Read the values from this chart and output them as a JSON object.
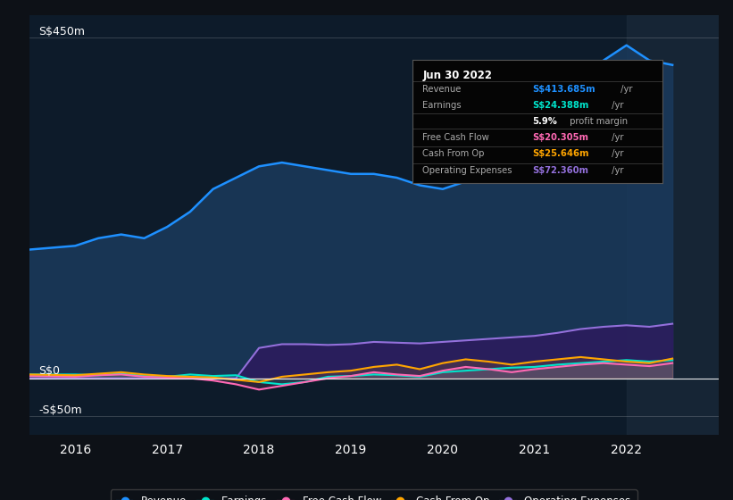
{
  "bg_color": "#0d1117",
  "plot_bg_color": "#0d1b2a",
  "title_box": {
    "date": "Jun 30 2022",
    "rows": [
      {
        "label": "Revenue",
        "value": "S$413.685m",
        "unit": "/yr",
        "color": "#1e90ff"
      },
      {
        "label": "Earnings",
        "value": "S$24.388m",
        "unit": "/yr",
        "color": "#00e5cc"
      },
      {
        "label": "",
        "value": "5.9%",
        "unit": " profit margin",
        "color": "#ffffff"
      },
      {
        "label": "Free Cash Flow",
        "value": "S$20.305m",
        "unit": "/yr",
        "color": "#ff69b4"
      },
      {
        "label": "Cash From Op",
        "value": "S$25.646m",
        "unit": "/yr",
        "color": "#ffa500"
      },
      {
        "label": "Operating Expenses",
        "value": "S$72.360m",
        "unit": "/yr",
        "color": "#9370db"
      }
    ]
  },
  "ylabel_top": "S$450m",
  "ylabel_zero": "S$0",
  "ylabel_neg": "-S$50m",
  "x_ticks": [
    2016,
    2017,
    2018,
    2019,
    2020,
    2021,
    2022
  ],
  "x_range": [
    2015.5,
    2023.0
  ],
  "y_range": [
    -75,
    480
  ],
  "highlight_x_start": 2022.0,
  "series": {
    "revenue": {
      "color": "#1e90ff",
      "fill_color": "#1a3a5c",
      "label": "Revenue",
      "x": [
        2015.5,
        2016.0,
        2016.25,
        2016.5,
        2016.75,
        2017.0,
        2017.25,
        2017.5,
        2017.75,
        2018.0,
        2018.25,
        2018.5,
        2018.75,
        2019.0,
        2019.25,
        2019.5,
        2019.75,
        2020.0,
        2020.25,
        2020.5,
        2020.75,
        2021.0,
        2021.25,
        2021.5,
        2021.75,
        2022.0,
        2022.25,
        2022.5
      ],
      "y": [
        170,
        175,
        185,
        190,
        185,
        200,
        220,
        250,
        265,
        280,
        285,
        280,
        275,
        270,
        270,
        265,
        255,
        250,
        260,
        265,
        275,
        295,
        330,
        380,
        420,
        440,
        420,
        414
      ]
    },
    "earnings": {
      "color": "#00e5cc",
      "label": "Earnings",
      "x": [
        2015.5,
        2016.0,
        2016.25,
        2016.5,
        2016.75,
        2017.0,
        2017.25,
        2017.5,
        2017.75,
        2018.0,
        2018.25,
        2018.5,
        2018.75,
        2019.0,
        2019.25,
        2019.5,
        2019.75,
        2020.0,
        2020.25,
        2020.5,
        2020.75,
        2021.0,
        2021.25,
        2021.5,
        2021.75,
        2022.0,
        2022.25,
        2022.5
      ],
      "y": [
        5,
        5,
        4,
        6,
        3,
        2,
        5,
        3,
        4,
        -5,
        -8,
        -5,
        2,
        3,
        5,
        4,
        2,
        8,
        10,
        12,
        14,
        15,
        18,
        20,
        22,
        24,
        22,
        24
      ]
    },
    "free_cash_flow": {
      "color": "#ff69b4",
      "label": "Free Cash Flow",
      "x": [
        2015.5,
        2016.0,
        2016.25,
        2016.5,
        2016.75,
        2017.0,
        2017.25,
        2017.5,
        2017.75,
        2018.0,
        2018.25,
        2018.5,
        2018.75,
        2019.0,
        2019.25,
        2019.5,
        2019.75,
        2020.0,
        2020.25,
        2020.5,
        2020.75,
        2021.0,
        2021.25,
        2021.5,
        2021.75,
        2022.0,
        2022.25,
        2022.5
      ],
      "y": [
        3,
        2,
        4,
        5,
        2,
        1,
        0,
        -3,
        -8,
        -15,
        -10,
        -5,
        0,
        3,
        8,
        5,
        3,
        10,
        15,
        12,
        8,
        12,
        15,
        18,
        20,
        18,
        16,
        20
      ]
    },
    "cash_from_op": {
      "color": "#ffa500",
      "label": "Cash From Op",
      "x": [
        2015.5,
        2016.0,
        2016.25,
        2016.5,
        2016.75,
        2017.0,
        2017.25,
        2017.5,
        2017.75,
        2018.0,
        2018.25,
        2018.5,
        2018.75,
        2019.0,
        2019.25,
        2019.5,
        2019.75,
        2020.0,
        2020.25,
        2020.5,
        2020.75,
        2021.0,
        2021.25,
        2021.5,
        2021.75,
        2022.0,
        2022.25,
        2022.5
      ],
      "y": [
        5,
        4,
        6,
        8,
        5,
        3,
        2,
        1,
        -2,
        -5,
        2,
        5,
        8,
        10,
        15,
        18,
        12,
        20,
        25,
        22,
        18,
        22,
        25,
        28,
        25,
        22,
        20,
        26
      ]
    },
    "operating_expenses": {
      "color": "#9370db",
      "fill_color": "#2d1b5e",
      "label": "Operating Expenses",
      "x": [
        2015.5,
        2016.0,
        2016.25,
        2016.5,
        2016.75,
        2017.0,
        2017.25,
        2017.5,
        2017.75,
        2018.0,
        2018.25,
        2018.5,
        2018.75,
        2019.0,
        2019.25,
        2019.5,
        2019.75,
        2020.0,
        2020.25,
        2020.5,
        2020.75,
        2021.0,
        2021.25,
        2021.5,
        2021.75,
        2022.0,
        2022.25,
        2022.5
      ],
      "y": [
        0,
        0,
        0,
        0,
        0,
        0,
        0,
        0,
        0,
        40,
        45,
        45,
        44,
        45,
        48,
        47,
        46,
        48,
        50,
        52,
        54,
        56,
        60,
        65,
        68,
        70,
        68,
        72
      ]
    }
  },
  "legend": [
    {
      "label": "Revenue",
      "color": "#1e90ff"
    },
    {
      "label": "Earnings",
      "color": "#00e5cc"
    },
    {
      "label": "Free Cash Flow",
      "color": "#ff69b4"
    },
    {
      "label": "Cash From Op",
      "color": "#ffa500"
    },
    {
      "label": "Operating Expenses",
      "color": "#9370db"
    }
  ]
}
